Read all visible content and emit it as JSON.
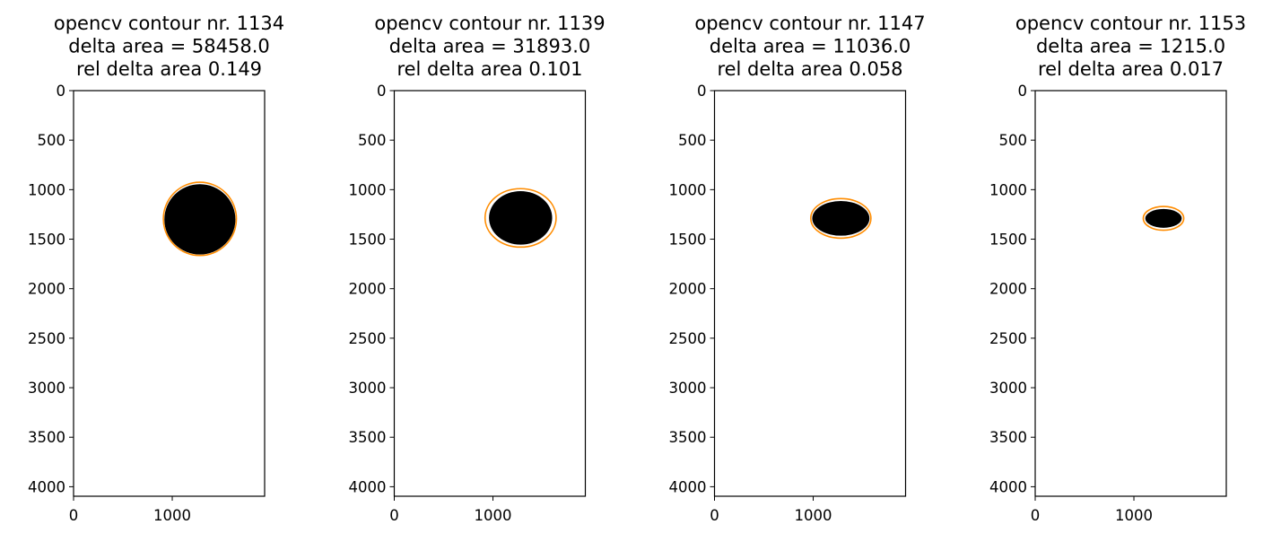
{
  "colors": {
    "background": "#ffffff",
    "blob": "#000000",
    "ellipse_outline": "#ff8c00",
    "axes": "#000000"
  },
  "chart_data": [
    {
      "type": "image",
      "title_lines": [
        "opencv contour nr. 1134",
        "delta area = 58458.0",
        "rel delta area 0.149"
      ],
      "xlim": [
        0,
        1936
      ],
      "ylim": [
        4096,
        0
      ],
      "xticks": [
        0,
        1000
      ],
      "yticks": [
        0,
        500,
        1000,
        1500,
        2000,
        2500,
        3000,
        3500,
        4000
      ],
      "contour_center": [
        1280,
        1300
      ],
      "contour_radii": [
        360,
        355
      ],
      "ellipse": {
        "center": [
          1280,
          1295
        ],
        "rx": 370,
        "ry": 370
      }
    },
    {
      "type": "image",
      "title_lines": [
        "opencv contour nr. 1139",
        "delta area = 31893.0",
        "rel delta area 0.101"
      ],
      "xlim": [
        0,
        1936
      ],
      "ylim": [
        4096,
        0
      ],
      "xticks": [
        0,
        1000
      ],
      "yticks": [
        0,
        500,
        1000,
        1500,
        2000,
        2500,
        3000,
        3500,
        4000
      ],
      "contour_center": [
        1280,
        1285
      ],
      "contour_radii": [
        320,
        270
      ],
      "ellipse": {
        "center": [
          1280,
          1285
        ],
        "rx": 360,
        "ry": 295
      }
    },
    {
      "type": "image",
      "title_lines": [
        "opencv contour nr. 1147",
        "delta area = 11036.0",
        "rel delta area 0.058"
      ],
      "xlim": [
        0,
        1936
      ],
      "ylim": [
        4096,
        0
      ],
      "xticks": [
        0,
        1000
      ],
      "yticks": [
        0,
        500,
        1000,
        1500,
        2000,
        2500,
        3000,
        3500,
        4000
      ],
      "contour_center": [
        1280,
        1290
      ],
      "contour_radii": [
        290,
        175
      ],
      "ellipse": {
        "center": [
          1280,
          1290
        ],
        "rx": 305,
        "ry": 200
      }
    },
    {
      "type": "image",
      "title_lines": [
        "opencv contour nr. 1153",
        "delta area = 1215.0",
        "rel delta area 0.017"
      ],
      "xlim": [
        0,
        1936
      ],
      "ylim": [
        4096,
        0
      ],
      "xticks": [
        0,
        1000
      ],
      "yticks": [
        0,
        500,
        1000,
        1500,
        2000,
        2500,
        3000,
        3500,
        4000
      ],
      "contour_center": [
        1300,
        1290
      ],
      "contour_radii": [
        185,
        95
      ],
      "ellipse": {
        "center": [
          1300,
          1290
        ],
        "rx": 205,
        "ry": 120
      }
    }
  ]
}
